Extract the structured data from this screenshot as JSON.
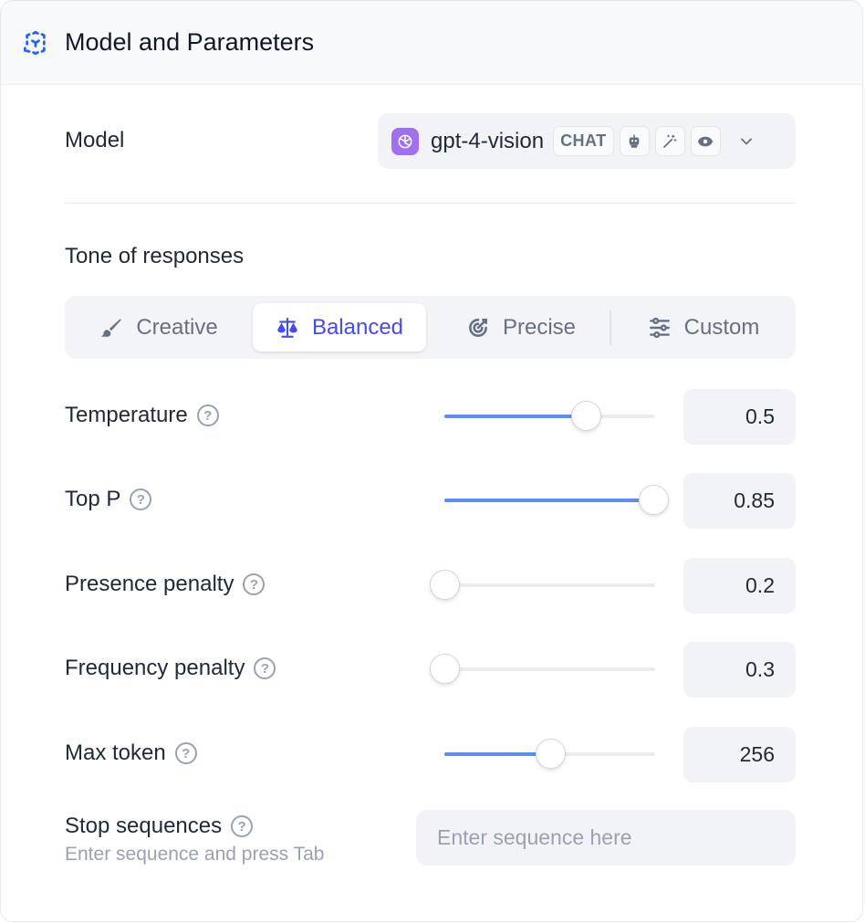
{
  "header": {
    "title": "Model and Parameters",
    "icon": "cube-dashed-icon",
    "accent": "#2563eb"
  },
  "model": {
    "label": "Model",
    "name": "gpt-4-vision",
    "badge": "CHAT",
    "capability_icons": [
      "robot-icon",
      "magic-wand-icon",
      "eye-icon"
    ]
  },
  "tone": {
    "title": "Tone of responses",
    "tabs": [
      {
        "label": "Creative",
        "icon": "brush-icon"
      },
      {
        "label": "Balanced",
        "icon": "scale-icon",
        "active": true
      },
      {
        "label": "Precise",
        "icon": "target-icon"
      },
      {
        "label": "Custom",
        "icon": "sliders-icon"
      }
    ]
  },
  "params": [
    {
      "label": "Temperature",
      "value": "0.5",
      "slider_percent": 67
    },
    {
      "label": "Top P",
      "value": "0.85",
      "slider_percent": 99
    },
    {
      "label": "Presence penalty",
      "value": "0.2",
      "slider_percent": 0
    },
    {
      "label": "Frequency penalty",
      "value": "0.3",
      "slider_percent": 0
    },
    {
      "label": "Max token",
      "value": "256",
      "slider_percent": 50
    }
  ],
  "stop": {
    "label": "Stop sequences",
    "hint": "Enter sequence and press Tab",
    "placeholder": "Enter sequence here"
  }
}
